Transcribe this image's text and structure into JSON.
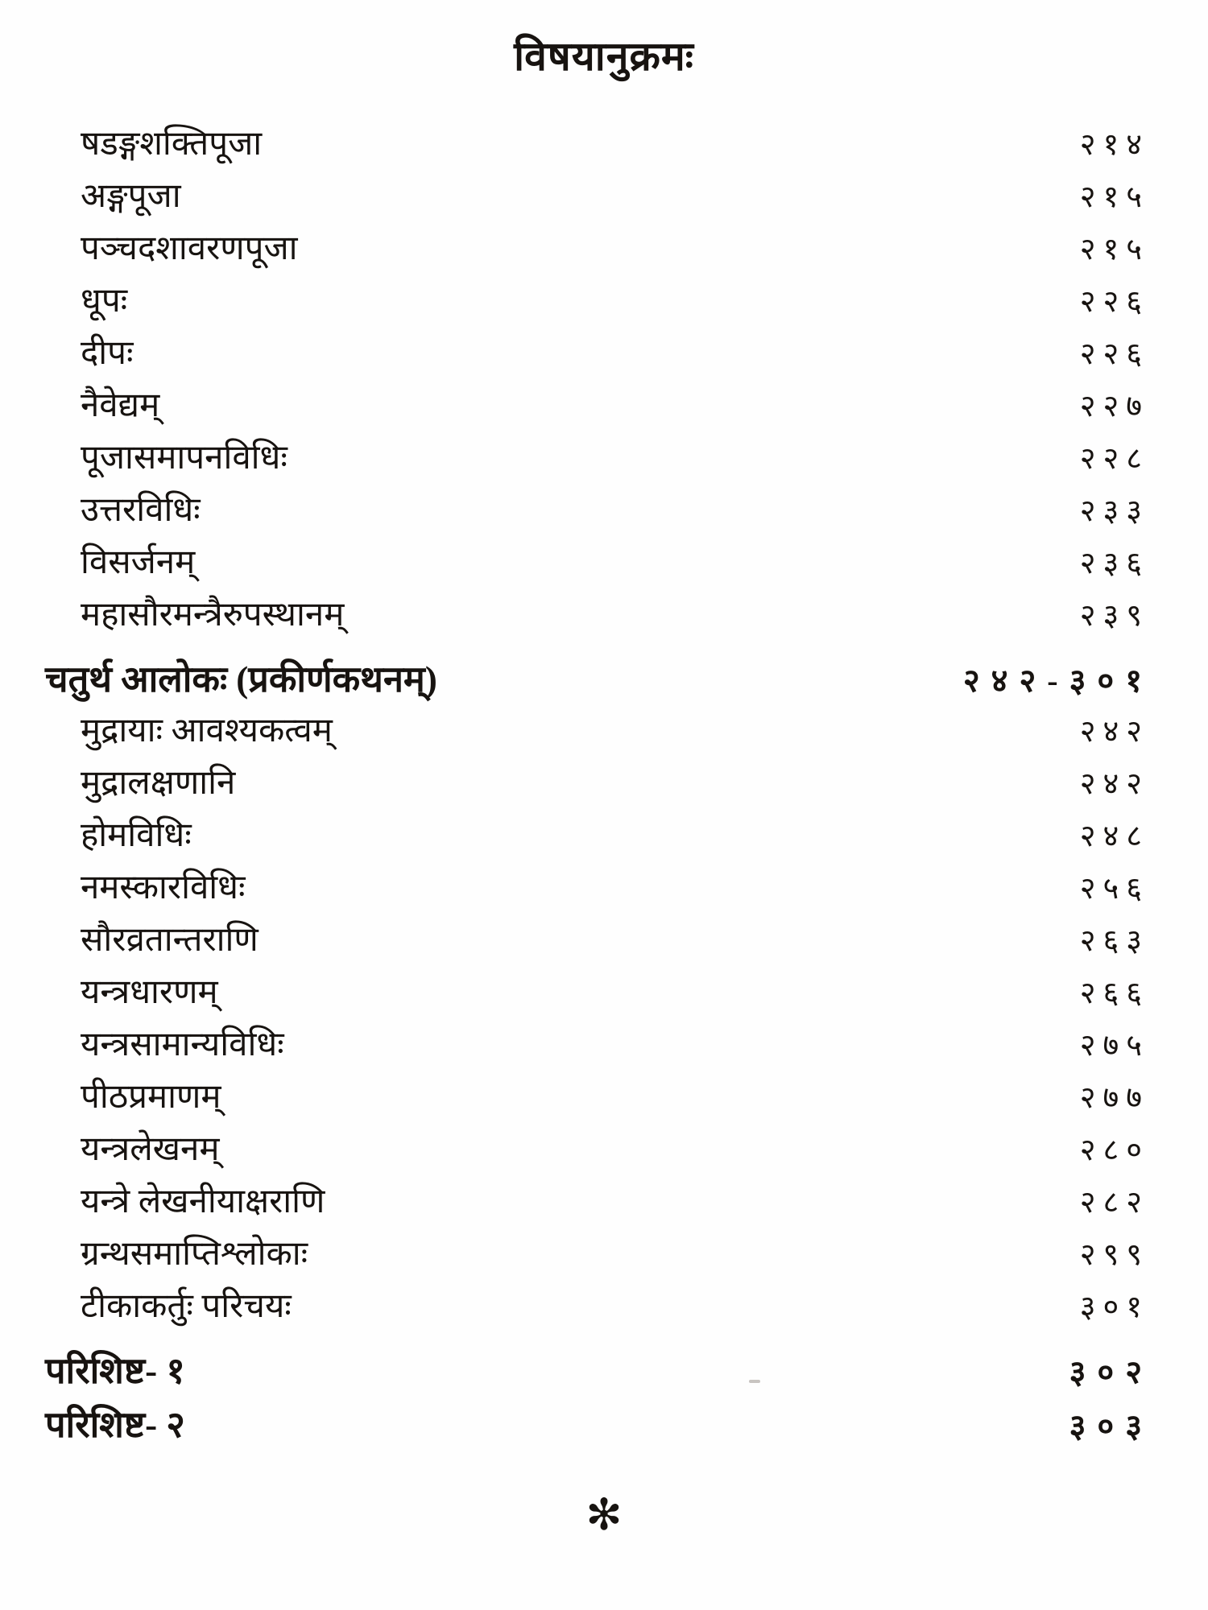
{
  "page": {
    "title": "विषयानुक्रमः",
    "footer_symbol": "✻"
  },
  "toc": {
    "entries": [
      {
        "label": "षडङ्गशक्तिपूजा",
        "page": "२१४",
        "type": "entry"
      },
      {
        "label": "अङ्गपूजा",
        "page": "२१५",
        "type": "entry"
      },
      {
        "label": "पञ्चदशावरणपूजा",
        "page": "२१५",
        "type": "entry"
      },
      {
        "label": "धूपः",
        "page": "२२६",
        "type": "entry"
      },
      {
        "label": "दीपः",
        "page": "२२६",
        "type": "entry"
      },
      {
        "label": "नैवेद्यम्",
        "page": "२२७",
        "type": "entry"
      },
      {
        "label": "पूजासमापनविधिः",
        "page": "२२८",
        "type": "entry"
      },
      {
        "label": "उत्तरविधिः",
        "page": "२३३",
        "type": "entry"
      },
      {
        "label": "विसर्जनम्",
        "page": "२३६",
        "type": "entry"
      },
      {
        "label": "महासौरमन्त्रैरुपस्थानम्",
        "page": "२३९",
        "type": "entry"
      },
      {
        "label": "चतुर्थ आलोकः (प्रकीर्णकथनम्)",
        "page": "२४२-३०१",
        "type": "section"
      },
      {
        "label": "मुद्रायाः आवश्यकत्वम्",
        "page": "२४२",
        "type": "entry"
      },
      {
        "label": "मुद्रालक्षणानि",
        "page": "२४२",
        "type": "entry"
      },
      {
        "label": "होमविधिः",
        "page": "२४८",
        "type": "entry"
      },
      {
        "label": "नमस्कारविधिः",
        "page": "२५६",
        "type": "entry"
      },
      {
        "label": "सौरव्रतान्तराणि",
        "page": "२६३",
        "type": "entry"
      },
      {
        "label": "यन्त्रधारणम्",
        "page": "२६६",
        "type": "entry"
      },
      {
        "label": "यन्त्रसामान्यविधिः",
        "page": "२७५",
        "type": "entry"
      },
      {
        "label": "पीठप्रमाणम्",
        "page": "२७७",
        "type": "entry"
      },
      {
        "label": "यन्त्रलेखनम्",
        "page": "२८०",
        "type": "entry"
      },
      {
        "label": "यन्त्रे लेखनीयाक्षराणि",
        "page": "२८२",
        "type": "entry"
      },
      {
        "label": "ग्रन्थसमाप्तिश्लोकाः",
        "page": "२९९",
        "type": "entry"
      },
      {
        "label": "टीकाकर्तुः परिचयः",
        "page": "३०१",
        "type": "entry"
      },
      {
        "label": "परिशिष्ट- १",
        "page": "३०२",
        "type": "section"
      },
      {
        "label": "परिशिष्ट- २",
        "page": "३०३",
        "type": "section"
      }
    ]
  }
}
